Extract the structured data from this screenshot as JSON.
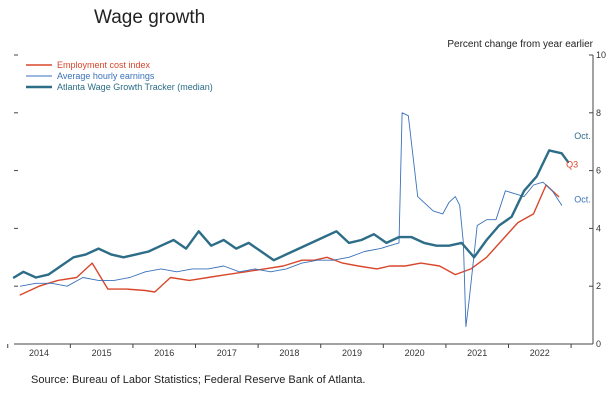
{
  "chart_data": {
    "type": "line",
    "title": "Wage growth",
    "ylabel": "Percent change from year earlier",
    "source": "Source: Bureau of Labor Statistics; Federal Reserve Bank of Atlanta.",
    "xlim": [
      2013.6,
      2022.85
    ],
    "ylim": [
      0,
      10
    ],
    "yticks": [
      0,
      2,
      4,
      6,
      8,
      10
    ],
    "xticks": [
      {
        "label": "2014",
        "value": 2014.0
      },
      {
        "label": "2015",
        "value": 2015.0
      },
      {
        "label": "2016",
        "value": 2016.0
      },
      {
        "label": "2017",
        "value": 2017.0
      },
      {
        "label": "2018",
        "value": 2018.0
      },
      {
        "label": "2019",
        "value": 2019.0
      },
      {
        "label": "2020",
        "value": 2020.0
      },
      {
        "label": "2021",
        "value": 2021.0
      },
      {
        "label": "2022",
        "value": 2022.0
      }
    ],
    "grid": false,
    "legend": "top-left",
    "series": [
      {
        "name": "Employment cost index",
        "color": "#d9472b",
        "x": [
          2013.7,
          2014.0,
          2014.3,
          2014.6,
          2014.85,
          2015.1,
          2015.4,
          2015.7,
          2015.85,
          2016.1,
          2016.4,
          2016.7,
          2017.0,
          2017.3,
          2017.6,
          2017.9,
          2018.2,
          2018.4,
          2018.6,
          2018.85,
          2019.1,
          2019.4,
          2019.6,
          2019.85,
          2020.1,
          2020.4,
          2020.65,
          2020.9,
          2021.15,
          2021.4,
          2021.65,
          2021.9,
          2022.1,
          2022.3
        ],
        "values": [
          1.7,
          2.0,
          2.2,
          2.3,
          2.8,
          1.9,
          1.9,
          1.85,
          1.8,
          2.3,
          2.2,
          2.3,
          2.4,
          2.5,
          2.6,
          2.7,
          2.9,
          2.9,
          3.0,
          2.8,
          2.7,
          2.6,
          2.7,
          2.7,
          2.8,
          2.7,
          2.4,
          2.6,
          3.0,
          3.6,
          4.2,
          4.5,
          5.5,
          5.1
        ]
      },
      {
        "name": "Average hourly earnings",
        "color": "#3a72b9",
        "x": [
          2013.7,
          2013.95,
          2014.2,
          2014.45,
          2014.7,
          2014.95,
          2015.2,
          2015.45,
          2015.7,
          2015.95,
          2016.2,
          2016.45,
          2016.7,
          2016.95,
          2017.2,
          2017.45,
          2017.7,
          2017.95,
          2018.2,
          2018.45,
          2018.7,
          2018.95,
          2019.2,
          2019.45,
          2019.6,
          2019.75,
          2019.8,
          2019.9,
          2020.05,
          2020.2,
          2020.3,
          2020.45,
          2020.55,
          2020.65,
          2020.72,
          2020.78,
          2020.82,
          2020.87,
          2021.0,
          2021.15,
          2021.3,
          2021.45,
          2021.6,
          2021.75,
          2021.9,
          2022.05,
          2022.2,
          2022.35
        ],
        "values": [
          2.0,
          2.1,
          2.1,
          2.0,
          2.3,
          2.2,
          2.2,
          2.3,
          2.5,
          2.6,
          2.5,
          2.6,
          2.6,
          2.7,
          2.5,
          2.6,
          2.5,
          2.6,
          2.8,
          2.9,
          2.9,
          3.0,
          3.2,
          3.3,
          3.4,
          3.5,
          8.0,
          7.9,
          5.1,
          4.8,
          4.6,
          4.5,
          4.9,
          5.1,
          4.8,
          3.5,
          0.6,
          1.5,
          4.1,
          4.3,
          4.3,
          5.3,
          5.2,
          5.1,
          5.5,
          5.6,
          5.3,
          4.8
        ]
      },
      {
        "name": "Atlanta Wage Growth Tracker (median)",
        "color": "#2d6d87",
        "x": [
          2013.6,
          2013.75,
          2013.95,
          2014.15,
          2014.35,
          2014.55,
          2014.75,
          2014.95,
          2015.15,
          2015.35,
          2015.55,
          2015.75,
          2015.95,
          2016.15,
          2016.35,
          2016.55,
          2016.75,
          2016.95,
          2017.15,
          2017.35,
          2017.55,
          2017.75,
          2017.95,
          2018.15,
          2018.35,
          2018.55,
          2018.75,
          2018.95,
          2019.15,
          2019.35,
          2019.55,
          2019.75,
          2019.95,
          2020.15,
          2020.35,
          2020.55,
          2020.75,
          2020.95,
          2021.15,
          2021.35,
          2021.55,
          2021.75,
          2021.95,
          2022.15,
          2022.35,
          2022.45
        ],
        "values": [
          2.3,
          2.5,
          2.3,
          2.4,
          2.7,
          3.0,
          3.1,
          3.3,
          3.1,
          3.0,
          3.1,
          3.2,
          3.4,
          3.6,
          3.3,
          3.9,
          3.4,
          3.6,
          3.3,
          3.5,
          3.2,
          2.9,
          3.1,
          3.3,
          3.5,
          3.7,
          3.9,
          3.5,
          3.6,
          3.8,
          3.5,
          3.7,
          3.7,
          3.5,
          3.4,
          3.4,
          3.5,
          3.0,
          3.6,
          4.1,
          4.4,
          5.3,
          5.8,
          6.7,
          6.6,
          6.3
        ]
      }
    ],
    "annotations": [
      {
        "text": "Oct.",
        "series": 2,
        "x": 2022.55,
        "y": 7.1
      },
      {
        "text": "Q3",
        "series": 0,
        "x": 2022.42,
        "y": 6.1
      },
      {
        "text": "Oct.",
        "series": 1,
        "x": 2022.55,
        "y": 4.9
      }
    ]
  }
}
